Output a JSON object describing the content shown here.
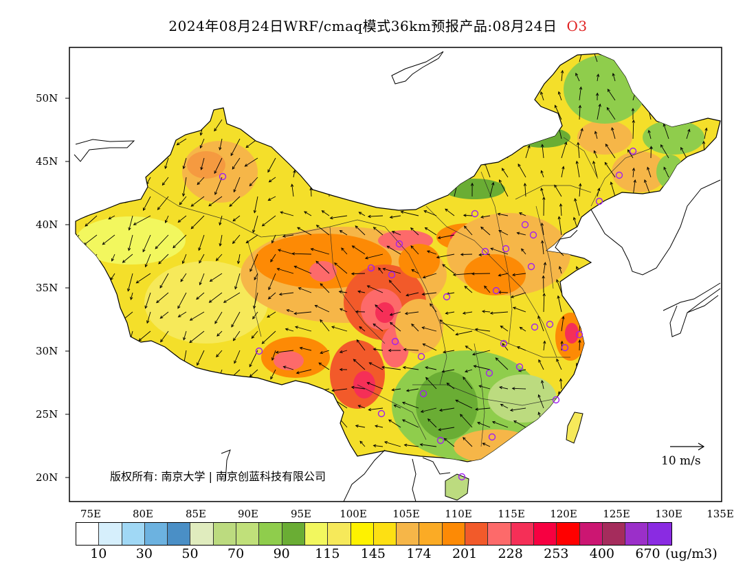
{
  "title": {
    "main": "2024年08月24日WRF/cmaq模式36km预报产品:08月24日",
    "species": "O3"
  },
  "map": {
    "lat_labels": [
      "50N",
      "45N",
      "40N",
      "35N",
      "30N",
      "25N",
      "20N"
    ],
    "lon_labels": [
      "75E",
      "80E",
      "85E",
      "90E",
      "95E",
      "100E",
      "105E",
      "110E",
      "115E",
      "120E",
      "125E",
      "130E",
      "135E"
    ],
    "lon_range": [
      73,
      135
    ],
    "lat_range": [
      18,
      54
    ],
    "copyright": "版权所有: 南京大学 | 南京创蓝科技有限公司",
    "wind_reference": "10 m/s",
    "station_marker_color": "#a020f0",
    "colors": {
      "high_ozone": "#ff6666",
      "moderate": "#f9a23c",
      "low_green": "#8dcf4d",
      "ocean": "#ffffff"
    }
  },
  "colorbar": {
    "colors": [
      "#ffffff",
      "#d6effc",
      "#a0d8f5",
      "#6cb2e0",
      "#4a8fc6",
      "#e0ecbe",
      "#bcdb7f",
      "#c0e07a",
      "#8fcd4c",
      "#6aad34",
      "#f2f75e",
      "#f6e95a",
      "#fef200",
      "#fde013",
      "#f6b648",
      "#fbab25",
      "#fd8a05",
      "#f25a2a",
      "#fd6a6a",
      "#f52f57",
      "#f70041",
      "#ff0000",
      "#cc1672",
      "#a52c5c",
      "#9b2fc9",
      "#8a2be2"
    ],
    "labels": [
      "10",
      "30",
      "50",
      "70",
      "90",
      "115",
      "145",
      "174",
      "201",
      "228",
      "253",
      "400",
      "670"
    ],
    "unit": "(ug/m3)"
  }
}
